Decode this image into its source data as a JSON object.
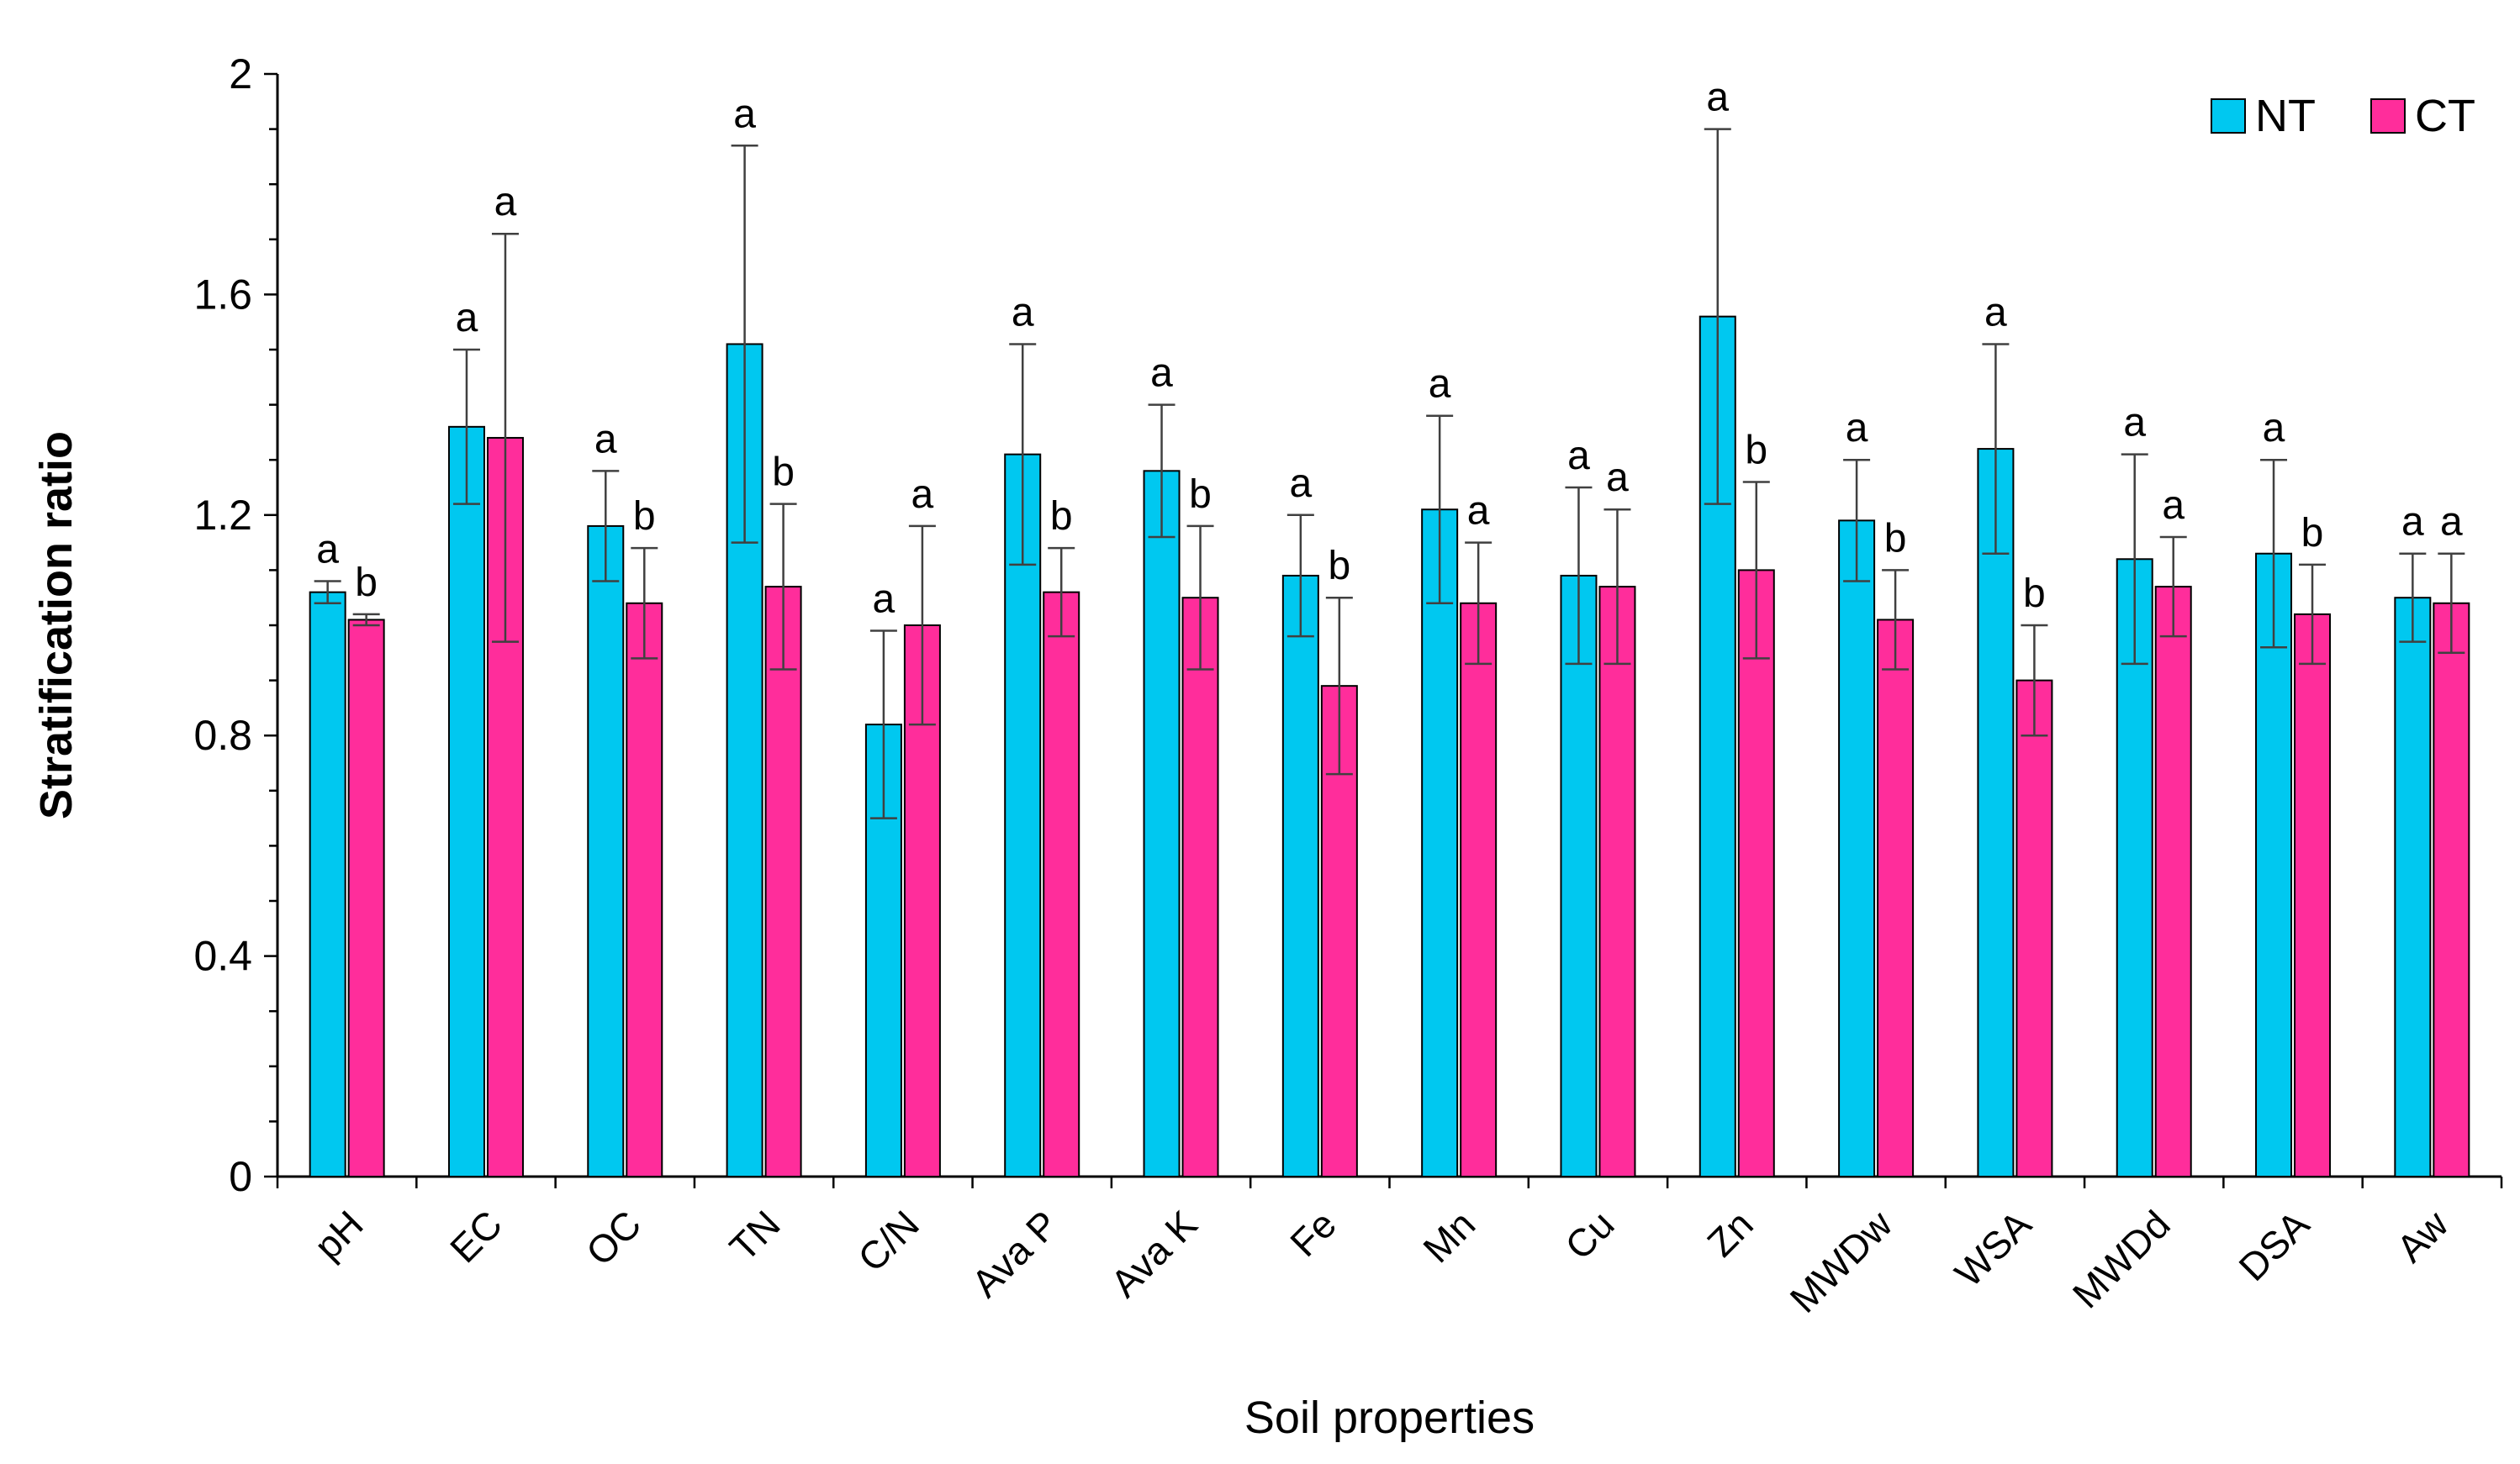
{
  "chart_data": {
    "type": "bar",
    "title": "",
    "xlabel": "Soil properties",
    "ylabel": "Stratification ratio",
    "ylim": [
      0,
      2
    ],
    "yticks": [
      "0",
      "0.4",
      "0.8",
      "1.2",
      "1.6",
      "2"
    ],
    "ytick_values": [
      0,
      0.4,
      0.8,
      1.2,
      1.6,
      2
    ],
    "legend_position": "top-right",
    "categories": [
      "pH",
      "EC",
      "OC",
      "TN",
      "C/N",
      "Ava P",
      "Ava K",
      "Fe",
      "Mn",
      "Cu",
      "Zn",
      "MWDw",
      "WSA",
      "MWDd",
      "DSA",
      "Aw"
    ],
    "series": [
      {
        "name": "NT",
        "color": "#00C8F0",
        "values": [
          1.06,
          1.36,
          1.18,
          1.51,
          0.82,
          1.31,
          1.28,
          1.09,
          1.21,
          1.09,
          1.56,
          1.19,
          1.32,
          1.12,
          1.13,
          1.05
        ],
        "errors": [
          0.02,
          0.14,
          0.1,
          0.36,
          0.17,
          0.2,
          0.12,
          0.11,
          0.17,
          0.16,
          0.34,
          0.11,
          0.19,
          0.19,
          0.17,
          0.08
        ],
        "sig": [
          "a",
          "a",
          "a",
          "a",
          "a",
          "a",
          "a",
          "a",
          "a",
          "a",
          "a",
          "a",
          "a",
          "a",
          "a",
          "a"
        ]
      },
      {
        "name": "CT",
        "color": "#FF2D9B",
        "values": [
          1.01,
          1.34,
          1.04,
          1.07,
          1.0,
          1.06,
          1.05,
          0.89,
          1.04,
          1.07,
          1.1,
          1.01,
          0.9,
          1.07,
          1.02,
          1.04
        ],
        "errors": [
          0.01,
          0.37,
          0.1,
          0.15,
          0.18,
          0.08,
          0.13,
          0.16,
          0.11,
          0.14,
          0.16,
          0.09,
          0.1,
          0.09,
          0.09,
          0.09
        ],
        "sig": [
          "b",
          "a",
          "b",
          "b",
          "a",
          "b",
          "b",
          "b",
          "a",
          "a",
          "b",
          "b",
          "b",
          "a",
          "b",
          "a"
        ]
      }
    ]
  }
}
